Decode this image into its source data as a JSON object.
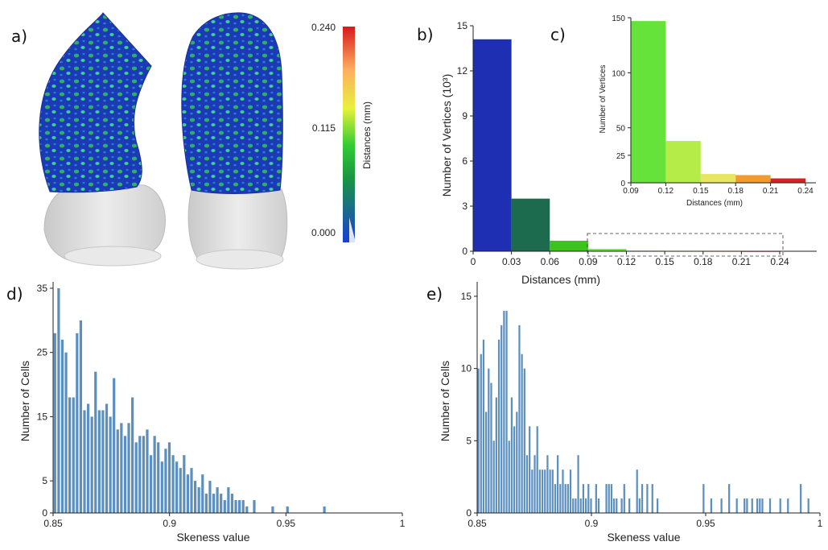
{
  "panel_labels": {
    "a": "a)",
    "b": "b)",
    "c": "c)",
    "d": "d)",
    "e": "e)"
  },
  "colorbar": {
    "label": "Distances (mm)",
    "ticks": [
      "0.240",
      "0.115",
      "0.000"
    ],
    "colors": [
      "#d7191c",
      "#fdae61",
      "#e6f23a",
      "#33cc33",
      "#1a9641",
      "#1a3fd4"
    ]
  },
  "chart_data": [
    {
      "id": "b",
      "type": "bar",
      "xlabel": "Distances (mm)",
      "ylabel": "Number of Vertices (10³)",
      "ylim": [
        0,
        15
      ],
      "yticks": [
        "0",
        "3",
        "6",
        "9",
        "12",
        "15"
      ],
      "xticks": [
        "0",
        "0.03",
        "0.06",
        "0.09",
        "0.12",
        "0.15",
        "0.18",
        "0.21",
        "0.24"
      ],
      "bins": [
        {
          "x0": 0.0,
          "x1": 0.03,
          "value": 14.1,
          "color": "#1e2fb4"
        },
        {
          "x0": 0.03,
          "x1": 0.06,
          "value": 3.5,
          "color": "#1d6b4e"
        },
        {
          "x0": 0.06,
          "x1": 0.09,
          "value": 0.7,
          "color": "#3ec21d"
        },
        {
          "x0": 0.09,
          "x1": 0.12,
          "value": 0.15,
          "color": "#66e33a"
        },
        {
          "x0": 0.12,
          "x1": 0.15,
          "value": 0.04,
          "color": "#c7ea46"
        },
        {
          "x0": 0.15,
          "x1": 0.18,
          "value": 0.01,
          "color": "#e6e660"
        },
        {
          "x0": 0.18,
          "x1": 0.21,
          "value": 0.01,
          "color": "#f39a2f"
        },
        {
          "x0": 0.21,
          "x1": 0.24,
          "value": 0.005,
          "color": "#d92020"
        }
      ]
    },
    {
      "id": "c",
      "type": "bar",
      "xlabel": "Distances (mm)",
      "ylabel": "Number of Vertices",
      "ylim": [
        0,
        150
      ],
      "yticks": [
        "0",
        "25",
        "50",
        "100",
        "150"
      ],
      "xticks": [
        "0.09",
        "0.12",
        "0.15",
        "0.18",
        "0.21",
        "0.24"
      ],
      "bins": [
        {
          "x0": 0.09,
          "x1": 0.12,
          "value": 147,
          "color": "#66e33a"
        },
        {
          "x0": 0.12,
          "x1": 0.15,
          "value": 38,
          "color": "#b5ec47"
        },
        {
          "x0": 0.15,
          "x1": 0.18,
          "value": 8,
          "color": "#e6e660"
        },
        {
          "x0": 0.18,
          "x1": 0.21,
          "value": 7,
          "color": "#f39a2f"
        },
        {
          "x0": 0.21,
          "x1": 0.24,
          "value": 4,
          "color": "#d92020"
        }
      ]
    },
    {
      "id": "d",
      "type": "bar",
      "xlabel": "Skeness value",
      "ylabel": "Number of Cells",
      "ylim": [
        0,
        36
      ],
      "yticks": [
        "0",
        "5",
        "15",
        "25",
        "35"
      ],
      "xticks": [
        "0.85",
        "0.9",
        "0.95",
        "1"
      ],
      "xlim": [
        0.85,
        1.0
      ],
      "values": [
        28,
        35,
        27,
        25,
        18,
        18,
        28,
        30,
        16,
        17,
        15,
        22,
        16,
        16,
        17,
        15,
        21,
        13,
        14,
        12,
        14,
        18,
        11,
        12,
        12,
        13,
        9,
        12,
        11,
        8,
        10,
        11,
        9,
        8,
        7,
        9,
        6,
        7,
        5,
        4,
        6,
        3,
        5,
        3,
        4,
        3,
        2,
        4,
        3,
        2,
        2,
        2,
        1,
        0,
        2,
        0,
        0,
        0,
        0,
        1,
        0,
        0,
        0,
        1,
        0,
        0,
        0,
        0,
        0,
        0,
        0,
        0,
        0,
        1,
        0
      ]
    },
    {
      "id": "e",
      "type": "bar",
      "xlabel": "Skeness value",
      "ylabel": "Number of Cells",
      "ylim": [
        0,
        16
      ],
      "yticks": [
        "0",
        "5",
        "10",
        "15"
      ],
      "xticks": [
        "0.85",
        "0.9",
        "0.95",
        "1"
      ],
      "xlim": [
        0.85,
        1.0
      ],
      "values": [
        10,
        11,
        12,
        7,
        10,
        9,
        5,
        8,
        12,
        13,
        14,
        14,
        5,
        8,
        6,
        7,
        13,
        11,
        10,
        4,
        6,
        3,
        4,
        6,
        3,
        3,
        3,
        4,
        3,
        3,
        2,
        4,
        2,
        3,
        2,
        2,
        3,
        1,
        1,
        4,
        1,
        2,
        1,
        2,
        1,
        0,
        2,
        1,
        0,
        0,
        2,
        2,
        2,
        1,
        1,
        0,
        1,
        2,
        0,
        1,
        0,
        0,
        3,
        1,
        2,
        0,
        2,
        0,
        2,
        0,
        1,
        0,
        0,
        0,
        0,
        0,
        0,
        0,
        0,
        0,
        0,
        0,
        0,
        0,
        0,
        0,
        0,
        0,
        2,
        0,
        0,
        1,
        0,
        0,
        0,
        1,
        0,
        0,
        2,
        0,
        0,
        1,
        0,
        0,
        1,
        1,
        0,
        1,
        0,
        1,
        1,
        1,
        0,
        0,
        1,
        0,
        0,
        0,
        1,
        0,
        0,
        1,
        0,
        0,
        0,
        0,
        2,
        0,
        0,
        1,
        0,
        0,
        0,
        0
      ]
    }
  ]
}
